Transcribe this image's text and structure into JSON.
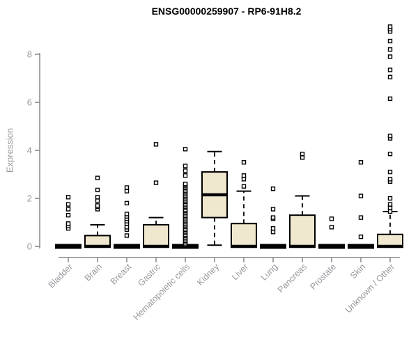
{
  "title": "ENSG00000259907 - RP6-91H8.2",
  "chart_data": {
    "type": "boxplot",
    "title": "ENSG00000259907 - RP6-91H8.2",
    "xlabel": "",
    "ylabel": "Expression",
    "ylim": [
      0,
      9.3
    ],
    "yticks": [
      0,
      2,
      4,
      6,
      8
    ],
    "grid": false,
    "legend": false,
    "categories": [
      "Bladder",
      "Brain",
      "Breast",
      "Gastric",
      "Hematopoietic cells",
      "Kidney",
      "Liver",
      "Lung",
      "Pancreas",
      "Prostate",
      "Skin",
      "Unknown / Other"
    ],
    "boxes": [
      {
        "category": "Bladder",
        "collapsed": true,
        "whisker_low": 0,
        "q1": 0,
        "median": 0,
        "q3": 0,
        "whisker_high": 0,
        "outliers": [
          0.75,
          0.85,
          0.95,
          1.3,
          1.55,
          1.75,
          2.05
        ]
      },
      {
        "category": "Brain",
        "collapsed": false,
        "whisker_low": 0,
        "q1": 0,
        "median": 0,
        "q3": 0.45,
        "whisker_high": 0.9,
        "outliers": [
          1.55,
          1.65,
          1.7,
          1.9,
          2.05,
          2.35,
          2.85
        ]
      },
      {
        "category": "Breast",
        "collapsed": true,
        "whisker_low": 0,
        "q1": 0,
        "median": 0,
        "q3": 0,
        "whisker_high": 0,
        "outliers": [
          0.45,
          0.7,
          0.8,
          0.95,
          1.05,
          1.15,
          1.25,
          1.35,
          1.8,
          2.3,
          2.45
        ]
      },
      {
        "category": "Gastric",
        "collapsed": false,
        "whisker_low": 0,
        "q1": 0,
        "median": 0,
        "q3": 0.9,
        "whisker_high": 1.2,
        "outliers": [
          2.65,
          4.25
        ]
      },
      {
        "category": "Hematopoietic cells",
        "collapsed": true,
        "whisker_low": 0,
        "q1": 0,
        "median": 0,
        "q3": 0,
        "whisker_high": 0,
        "outliers": [
          0.1,
          0.17,
          0.23,
          0.3,
          0.36,
          0.43,
          0.49,
          0.56,
          0.62,
          0.69,
          0.75,
          0.82,
          0.88,
          0.95,
          1.01,
          1.08,
          1.14,
          1.21,
          1.27,
          1.34,
          1.4,
          1.47,
          1.53,
          1.6,
          1.66,
          1.73,
          1.79,
          1.86,
          1.92,
          1.99,
          2.05,
          2.12,
          2.18,
          2.25,
          2.31,
          2.38,
          2.44,
          2.51,
          2.57,
          2.6,
          2.95,
          3.15,
          3.35,
          4.05
        ]
      },
      {
        "category": "Kidney",
        "collapsed": false,
        "whisker_low": 0.05,
        "q1": 1.2,
        "median": 2.15,
        "q3": 3.1,
        "whisker_high": 3.95,
        "outliers": []
      },
      {
        "category": "Liver",
        "collapsed": false,
        "whisker_low": 0,
        "q1": 0,
        "median": 0,
        "q3": 0.95,
        "whisker_high": 2.3,
        "outliers": [
          2.5,
          2.8,
          2.95,
          3.5
        ]
      },
      {
        "category": "Lung",
        "collapsed": true,
        "whisker_low": 0,
        "q1": 0,
        "median": 0,
        "q3": 0,
        "whisker_high": 0,
        "outliers": [
          0.6,
          0.75,
          1.15,
          1.2,
          1.55,
          2.4
        ]
      },
      {
        "category": "Pancreas",
        "collapsed": false,
        "whisker_low": 0,
        "q1": 0,
        "median": 0,
        "q3": 1.3,
        "whisker_high": 2.1,
        "outliers": [
          3.7,
          3.85
        ]
      },
      {
        "category": "Prostate",
        "collapsed": true,
        "whisker_low": 0,
        "q1": 0,
        "median": 0,
        "q3": 0,
        "whisker_high": 0,
        "outliers": [
          0.8,
          1.15
        ]
      },
      {
        "category": "Skin",
        "collapsed": true,
        "whisker_low": 0,
        "q1": 0,
        "median": 0,
        "q3": 0,
        "whisker_high": 0,
        "outliers": [
          0.4,
          1.2,
          2.1,
          3.5
        ]
      },
      {
        "category": "Unknown / Other",
        "collapsed": false,
        "whisker_low": 0,
        "q1": 0,
        "median": 0,
        "q3": 0.5,
        "whisker_high": 1.45,
        "outliers": [
          1.45,
          1.6,
          1.75,
          2.0,
          2.7,
          2.8,
          3.1,
          3.85,
          4.5,
          4.6,
          6.15,
          7.05,
          7.35,
          7.9,
          8.2,
          8.55,
          8.95,
          9.05,
          9.15
        ]
      }
    ],
    "colors": {
      "box_fill": "#efe8cf",
      "box_stroke": "#000000",
      "median": "#000000",
      "whisker": "#000000",
      "outlier_stroke": "#000000",
      "outlier_fill": "#ffffff",
      "axis": "#85878a",
      "tick_label": "#97999e",
      "title": "#000000",
      "background": "#ffffff"
    }
  }
}
